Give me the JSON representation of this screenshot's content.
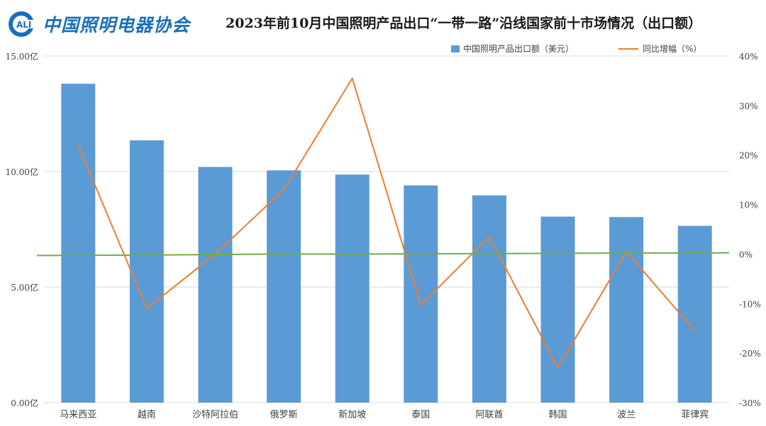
{
  "header": {
    "logo_letters": "ALI",
    "logo_text": "中国照明电器协会"
  },
  "chart_data": {
    "type": "bar",
    "title": "2023年前10月中国照明产品出口“一带一路”沿线国家前十市场情况（出口额）",
    "categories": [
      "马来西亚",
      "越南",
      "沙特阿拉伯",
      "俄罗斯",
      "新加坡",
      "泰国",
      "阿联酋",
      "韩国",
      "波兰",
      "菲律宾"
    ],
    "series": [
      {
        "name": "中国照明产品出口额（美元）",
        "type": "bar",
        "axis": "left",
        "color": "#5b9bd5",
        "values": [
          13.8,
          11.35,
          10.2,
          10.05,
          9.87,
          9.4,
          8.97,
          8.05,
          8.03,
          7.65
        ]
      },
      {
        "name": "同比增幅（%）",
        "type": "line",
        "axis": "right",
        "color": "#ed7d31",
        "values": [
          22,
          -11,
          0,
          13,
          35.5,
          -10.3,
          3.5,
          -23,
          0.5,
          -15.5
        ]
      },
      {
        "type": "line",
        "axis": "right",
        "color": "#70ad47",
        "values": [
          -0.3,
          -0.2,
          -0.1,
          0,
          0,
          0.05,
          0.1,
          0.15,
          0.2,
          0.25
        ]
      }
    ],
    "left_axis": {
      "ticks": [
        0,
        5,
        10,
        15
      ],
      "tick_labels": [
        "0.00亿",
        "5.00亿",
        "10.00亿",
        "15.00亿"
      ],
      "ylim": [
        0,
        15
      ]
    },
    "right_axis": {
      "ticks": [
        -30,
        -20,
        -10,
        0,
        10,
        20,
        30,
        40
      ],
      "tick_labels": [
        "-30%",
        "-20%",
        "-10%",
        "0%",
        "10%",
        "20%",
        "30%",
        "40%"
      ],
      "ylim": [
        -30,
        40
      ]
    },
    "grid": true,
    "legend_position": "top-right"
  }
}
